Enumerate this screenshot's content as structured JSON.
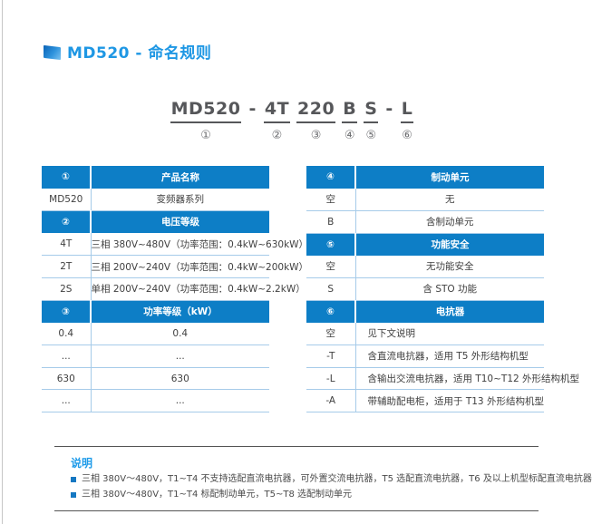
{
  "page": {
    "title": "MD520 - 命名规则",
    "colors": {
      "accent_blue": "#1e97e4",
      "table_header_blue": "#0d7ec6",
      "table_border_blue": "#a6cbe9",
      "bullet_blue": "#1578c2"
    }
  },
  "model_code": {
    "segments": [
      {
        "text": "MD520",
        "marker": "①"
      },
      {
        "text": "-",
        "marker": ""
      },
      {
        "text": "4T",
        "marker": "②"
      },
      {
        "text": "220",
        "marker": "③"
      },
      {
        "text": "B",
        "marker": "④"
      },
      {
        "text": "S",
        "marker": "⑤"
      },
      {
        "text": "-",
        "marker": ""
      },
      {
        "text": "L",
        "marker": "⑥"
      }
    ]
  },
  "left_table": {
    "rows": [
      {
        "c1": "①",
        "c2": "产品名称"
      },
      {
        "c1": "MD520",
        "c2": "变频器系列"
      },
      {
        "c1": "②",
        "c2": "电压等级"
      },
      {
        "c1": "4T",
        "c2": "三相 380V~480V（功率范围：0.4kW~630kW）"
      },
      {
        "c1": "2T",
        "c2": "三相 200V~240V（功率范围：0.4kW~200kW）"
      },
      {
        "c1": "2S",
        "c2": "单相 200V~240V（功率范围：0.4kW~2.2kW）"
      },
      {
        "c1": "③",
        "c2": "功率等级（kW）"
      },
      {
        "c1": "0.4",
        "c2": "0.4"
      },
      {
        "c1": "...",
        "c2": "..."
      },
      {
        "c1": "630",
        "c2": "630"
      },
      {
        "c1": "...",
        "c2": "..."
      }
    ]
  },
  "right_table": {
    "rows": [
      {
        "c1": "④",
        "c2": "制动单元"
      },
      {
        "c1": "空",
        "c2": "无"
      },
      {
        "c1": "B",
        "c2": "含制动单元"
      },
      {
        "c1": "⑤",
        "c2": "功能安全"
      },
      {
        "c1": "空",
        "c2": "无功能安全"
      },
      {
        "c1": "S",
        "c2": "含 STO 功能"
      },
      {
        "c1": "⑥",
        "c2": "电抗器"
      },
      {
        "c1": "空",
        "c2": "见下文说明"
      },
      {
        "c1": "-T",
        "c2": "含直流电抗器，适用 T5 外形结构机型"
      },
      {
        "c1": "-L",
        "c2": "含输出交流电抗器，适用 T10~T12 外形结构机型"
      },
      {
        "c1": "-A",
        "c2": "带辅助配电柜，适用于 T13 外形结构机型"
      }
    ]
  },
  "notes": {
    "heading": "说明",
    "items": [
      "三相 380V～480V，T1~T4 不支持选配直流电抗器，可外置交流电抗器，T5 选配直流电抗器，T6 及以上机型标配直流电抗器",
      "三相 380V～480V，T1~T4 标配制动单元，T5~T8 选配制动单元"
    ]
  }
}
